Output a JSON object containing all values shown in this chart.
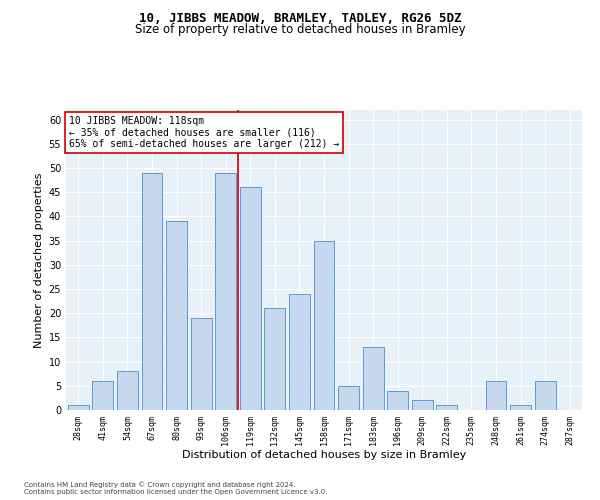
{
  "title1": "10, JIBBS MEADOW, BRAMLEY, TADLEY, RG26 5DZ",
  "title2": "Size of property relative to detached houses in Bramley",
  "xlabel": "Distribution of detached houses by size in Bramley",
  "ylabel": "Number of detached properties",
  "footnote1": "Contains HM Land Registry data © Crown copyright and database right 2024.",
  "footnote2": "Contains public sector information licensed under the Open Government Licence v3.0.",
  "annotation_line1": "10 JIBBS MEADOW: 118sqm",
  "annotation_line2": "← 35% of detached houses are smaller (116)",
  "annotation_line3": "65% of semi-detached houses are larger (212) →",
  "bar_labels": [
    "28sqm",
    "41sqm",
    "54sqm",
    "67sqm",
    "80sqm",
    "93sqm",
    "106sqm",
    "119sqm",
    "132sqm",
    "145sqm",
    "158sqm",
    "171sqm",
    "183sqm",
    "196sqm",
    "209sqm",
    "222sqm",
    "235sqm",
    "248sqm",
    "261sqm",
    "274sqm",
    "287sqm"
  ],
  "bar_values": [
    1,
    6,
    8,
    49,
    39,
    19,
    49,
    46,
    21,
    24,
    35,
    5,
    13,
    4,
    2,
    1,
    0,
    6,
    1,
    6,
    0
  ],
  "bar_color": "#c5d8ed",
  "bar_edge_color": "#5b9bd5",
  "vline_index": 7,
  "vline_color": "#cc0000",
  "ylim": [
    0,
    62
  ],
  "yticks": [
    0,
    5,
    10,
    15,
    20,
    25,
    30,
    35,
    40,
    45,
    50,
    55,
    60
  ],
  "bg_color": "#e8f0f8",
  "grid_color": "#ffffff",
  "title1_fontsize": 9,
  "title2_fontsize": 8.5,
  "xlabel_fontsize": 8,
  "ylabel_fontsize": 8,
  "annotation_fontsize": 7,
  "footnote_fontsize": 5
}
